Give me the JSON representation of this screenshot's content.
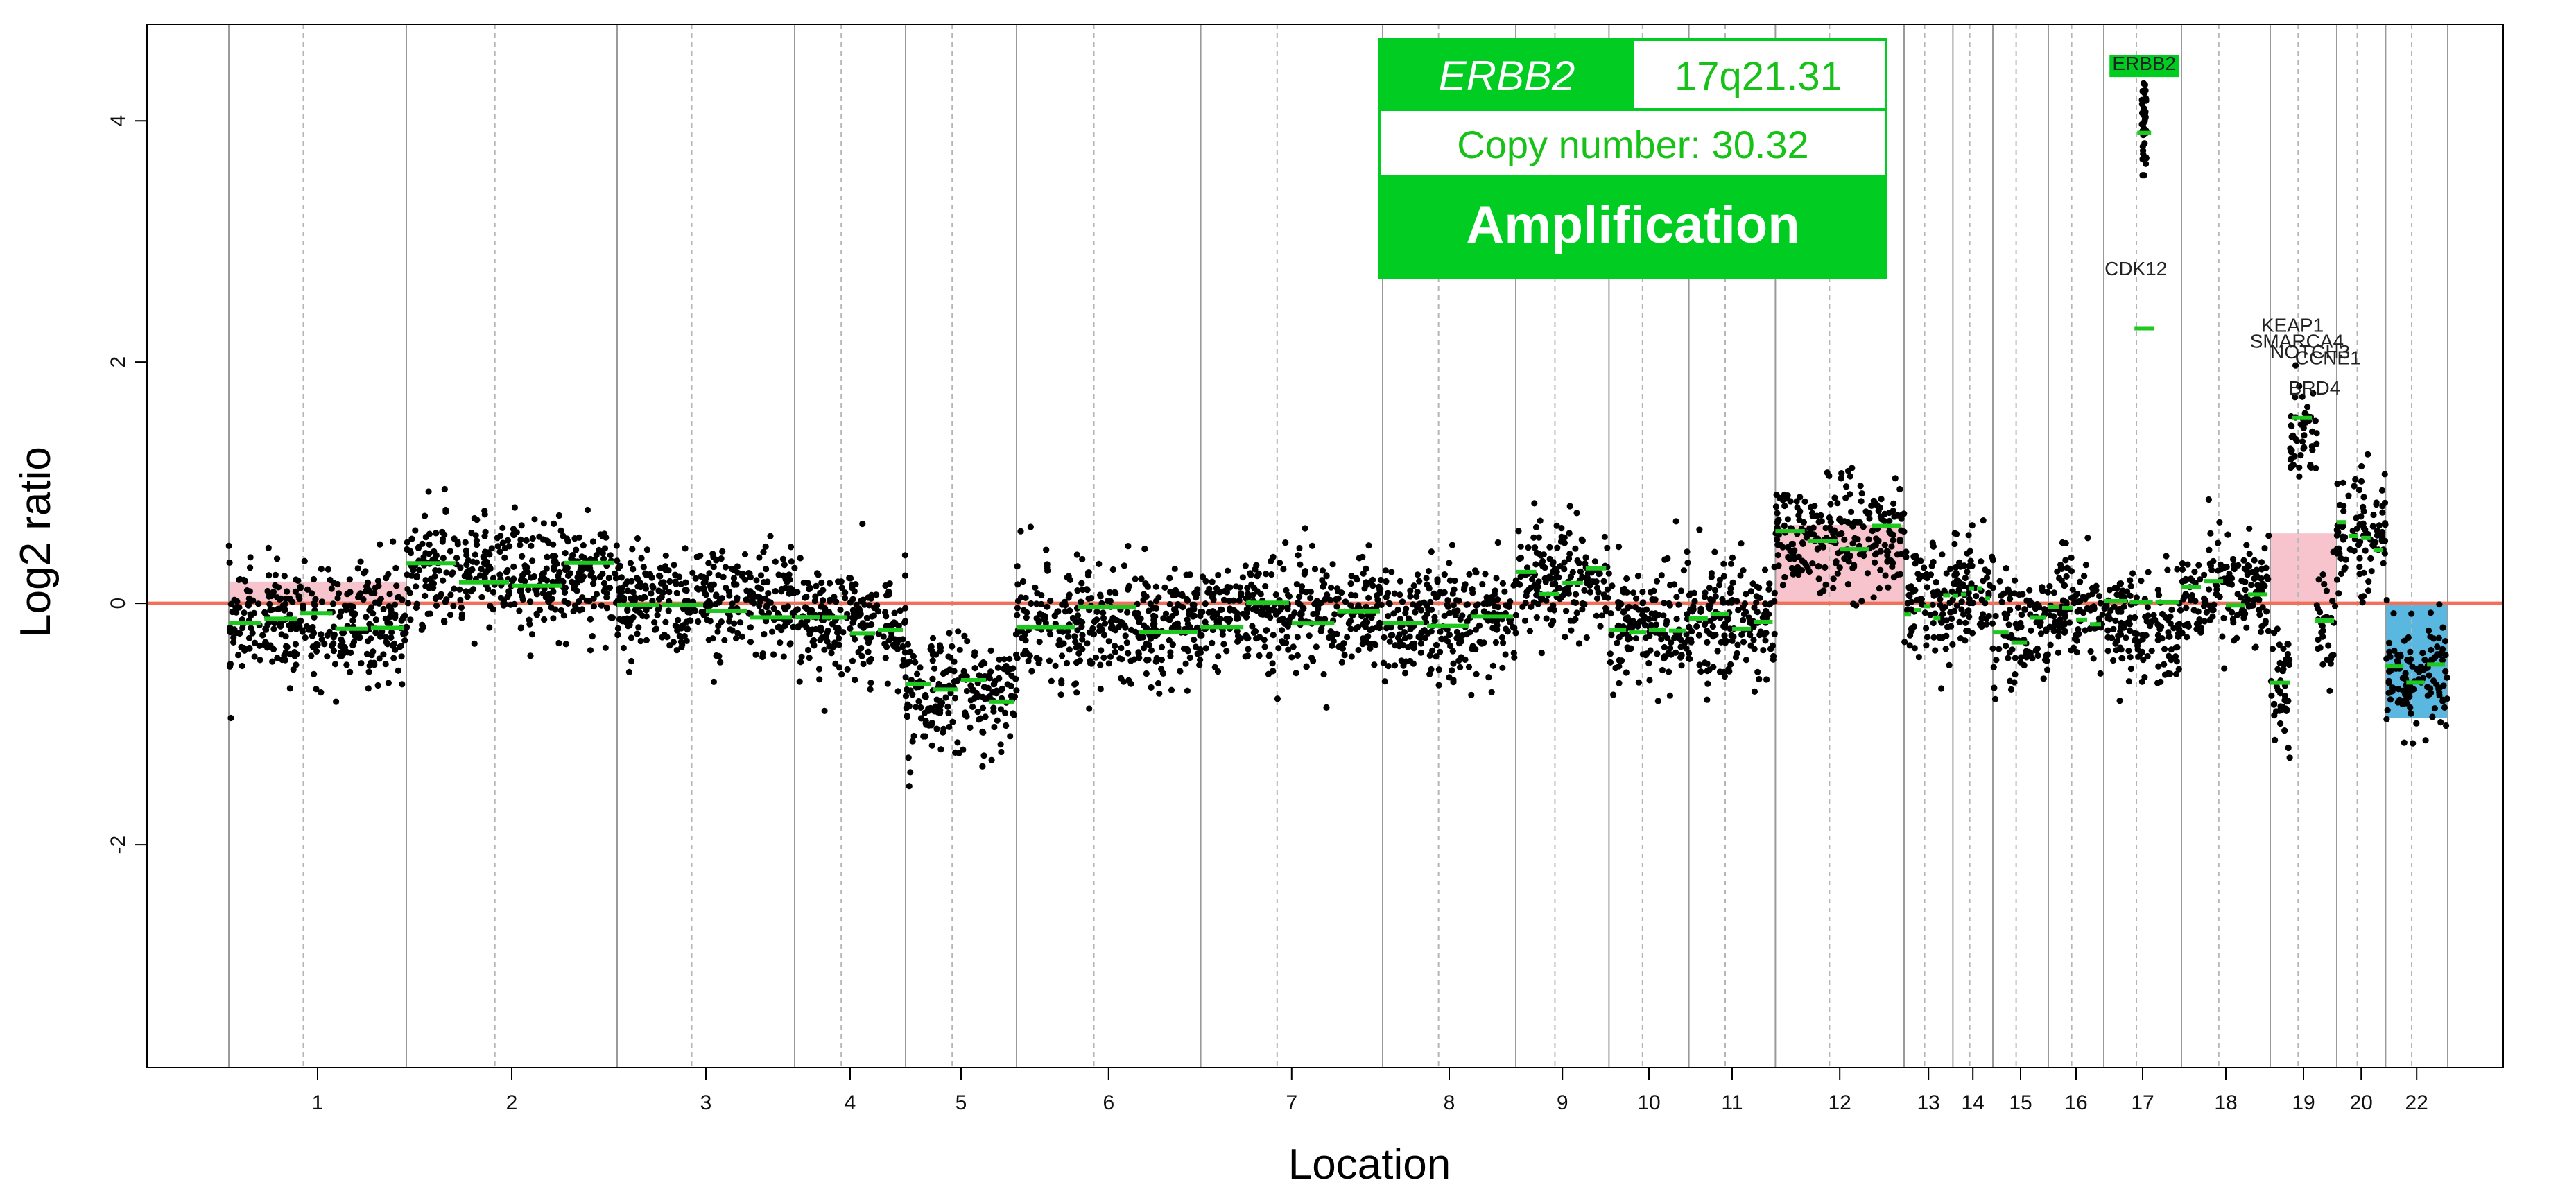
{
  "colors": {
    "points": "#000000",
    "segments": "#1ec81e",
    "baseline": "#f0705a",
    "gain": "#f7c3cc",
    "loss": "#5ab8e0",
    "boxGreen": "#00cc22"
  },
  "info_box": {
    "gene": "ERBB2",
    "band": "17q21.31",
    "copy_number": "Copy number: 30.32",
    "call": "Amplification"
  },
  "chart_data": {
    "type": "scatter",
    "title": "",
    "xlabel": "Location",
    "ylabel": "Log2 ratio",
    "ylim": [
      -3.85,
      4.8
    ],
    "yticks": [
      4,
      2,
      0,
      -2
    ],
    "ytick_labels": [
      "4",
      "2",
      "0",
      "-2"
    ],
    "x_axis": "genomic position by chromosome (ordinal)",
    "chromosomes": [
      {
        "label": "1",
        "start": 0.0,
        "end": 0.08,
        "mean": -0.15
      },
      {
        "label": "2",
        "start": 0.08,
        "end": 0.175,
        "mean": 0.22
      },
      {
        "label": "3",
        "start": 0.175,
        "end": 0.255,
        "mean": 0.0
      },
      {
        "label": "4",
        "start": 0.255,
        "end": 0.305,
        "mean": -0.15
      },
      {
        "label": "5",
        "start": 0.305,
        "end": 0.355,
        "mean": -0.75
      },
      {
        "label": "6",
        "start": 0.355,
        "end": 0.438,
        "mean": -0.15
      },
      {
        "label": "7",
        "start": 0.438,
        "end": 0.52,
        "mean": -0.1
      },
      {
        "label": "8",
        "start": 0.52,
        "end": 0.58,
        "mean": -0.15
      },
      {
        "label": "9",
        "start": 0.58,
        "end": 0.622,
        "mean": 0.2
      },
      {
        "label": "10",
        "start": 0.622,
        "end": 0.658,
        "mean": -0.2
      },
      {
        "label": "11",
        "start": 0.658,
        "end": 0.697,
        "mean": -0.15
      },
      {
        "label": "12",
        "start": 0.697,
        "end": 0.755,
        "mean": 0.55
      },
      {
        "label": "13",
        "start": 0.755,
        "end": 0.777,
        "mean": 0.0
      },
      {
        "label": "14",
        "start": 0.777,
        "end": 0.795,
        "mean": 0.15
      },
      {
        "label": "15",
        "start": 0.795,
        "end": 0.82,
        "mean": -0.2
      },
      {
        "label": "16",
        "start": 0.82,
        "end": 0.845,
        "mean": -0.05
      },
      {
        "label": "17",
        "start": 0.845,
        "end": 0.88,
        "mean": 0.0
      },
      {
        "label": "18",
        "start": 0.88,
        "end": 0.92,
        "mean": 0.1
      },
      {
        "label": "19",
        "start": 0.92,
        "end": 0.95,
        "mean": 0.5
      },
      {
        "label": "20",
        "start": 0.95,
        "end": 0.972,
        "mean": 0.55
      },
      {
        "label": "22",
        "start": 0.972,
        "end": 1.0,
        "mean": -0.6
      }
    ],
    "regions": [
      {
        "type": "gain",
        "chrom": "1",
        "y": 0.18
      },
      {
        "type": "gain",
        "chrom": "12",
        "y": 0.65
      },
      {
        "type": "gain",
        "chrom": "19",
        "y": 0.58
      },
      {
        "type": "loss",
        "chrom": "22",
        "y": -0.95
      }
    ],
    "highlight_points": [
      {
        "label": "ERBB2",
        "chrom": "17",
        "y": 4.4
      },
      {
        "label": "CDK12",
        "chrom": "17",
        "y": 2.85
      },
      {
        "label": "KEAP1",
        "chrom": "19",
        "y": 2.3
      },
      {
        "label": "SMARCA4",
        "chrom": "19",
        "y": 2.15
      },
      {
        "label": "NOTCH3",
        "chrom": "19",
        "y": 2.05
      },
      {
        "label": "CCNE1",
        "chrom": "19",
        "y": 2.0
      },
      {
        "label": "BRD4",
        "chrom": "19",
        "y": 1.78
      }
    ],
    "gene_labels": [
      "ERBB2",
      "CDK12",
      "KEAP1",
      "SMARCA4",
      "NOTCH3",
      "CCNE1",
      "BRD4"
    ]
  }
}
